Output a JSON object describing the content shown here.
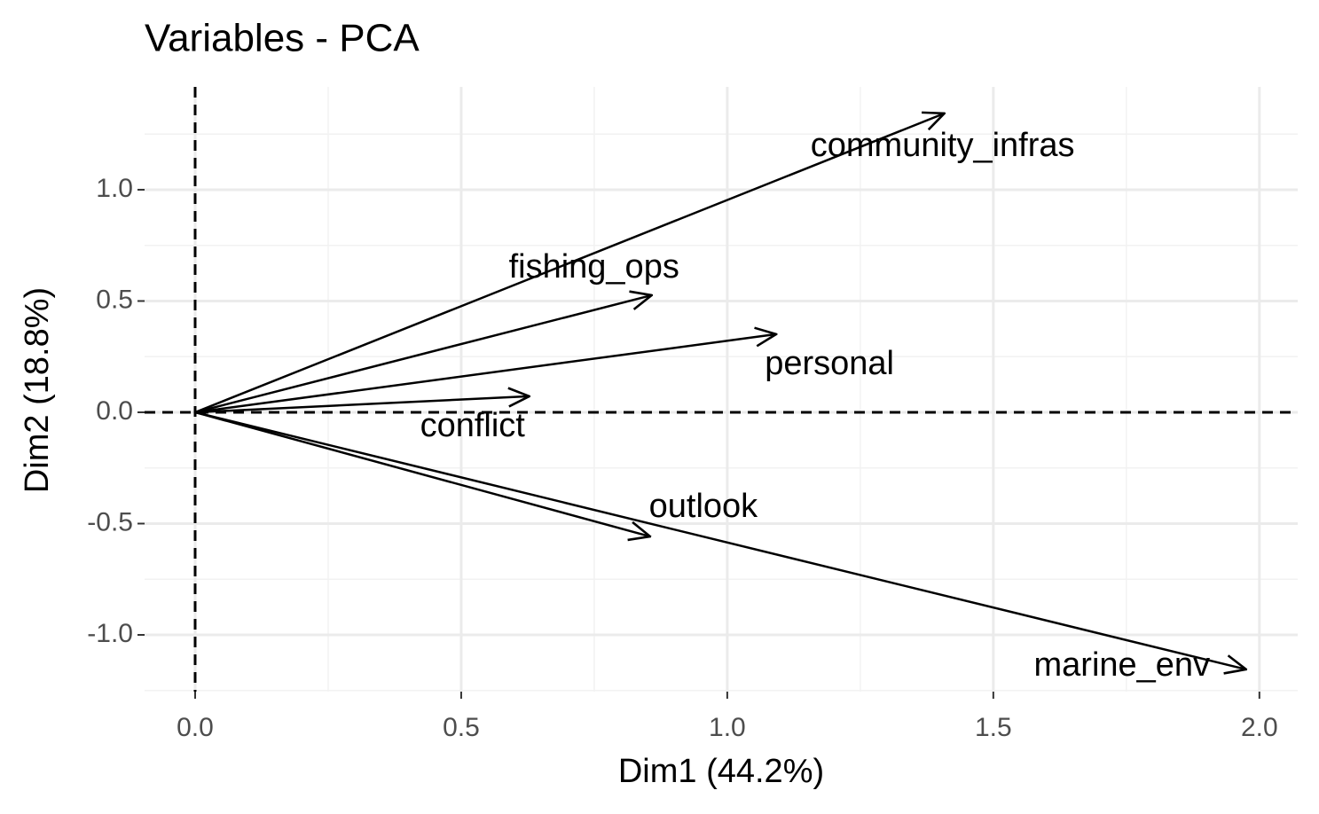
{
  "chart_data": {
    "type": "vector",
    "title": "Variables - PCA",
    "x_label": "Dim1 (44.2%)",
    "y_label": "Dim2 (18.8%)",
    "categories": [
      "community_infras",
      "fishing_ops",
      "personal",
      "conflict",
      "outlook",
      "marine_env"
    ],
    "x": [
      1.408,
      0.858,
      1.092,
      0.628,
      0.855,
      1.975
    ],
    "values": [
      1.343,
      0.526,
      0.351,
      0.072,
      -0.558,
      -1.155
    ],
    "color": "#000000",
    "xlim": [
      -0.095,
      2.072
    ],
    "ylim": [
      -1.255,
      1.462
    ],
    "xticks": [
      {
        "value": 0,
        "label": "0.0"
      },
      0.5,
      {
        "value": 1,
        "label": "1.0"
      },
      1.5,
      {
        "value": 2,
        "label": "2.0"
      }
    ],
    "yticks": [
      {
        "value": -1,
        "label": "-1.0"
      },
      -0.5,
      {
        "value": 0,
        "label": "0.0"
      },
      0.5,
      {
        "value": 1,
        "label": "1.0"
      }
    ],
    "grid": true,
    "dashed_zero_lines": true
  }
}
